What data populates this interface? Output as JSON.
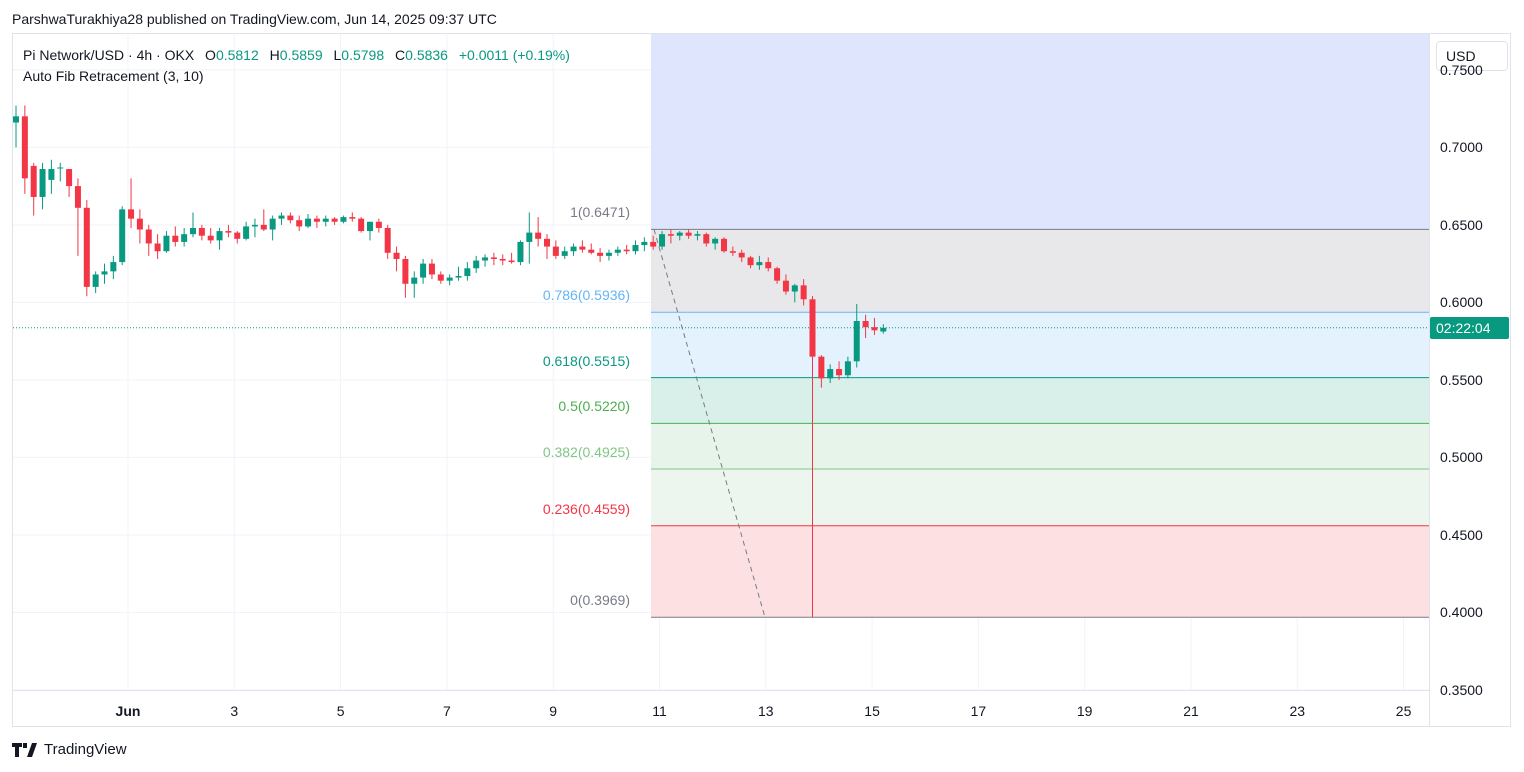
{
  "header": {
    "published_text": "ParshwaTurakhiya28 published on TradingView.com, Jun 14, 2025 09:37 UTC"
  },
  "legend": {
    "symbol": "Pi Network/USD · 4h · OKX",
    "o_label": "O",
    "o_value": "0.5812",
    "h_label": "H",
    "h_value": "0.5859",
    "l_label": "L",
    "l_value": "0.5798",
    "c_label": "C",
    "c_value": "0.5836",
    "change": "+0.0011 (+0.19%)",
    "indicator": "Auto Fib Retracement (3, 10)"
  },
  "price_axis": {
    "currency_button": "USD",
    "ticks": [
      "0.7500",
      "0.7000",
      "0.6500",
      "0.6000",
      "0.5500",
      "0.5000",
      "0.4500",
      "0.4000",
      "0.3500"
    ],
    "countdown": "02:22:04",
    "current_price": 0.5836
  },
  "time_axis": {
    "ticks": [
      {
        "label": "Jun",
        "bold": true
      },
      {
        "label": "3"
      },
      {
        "label": "5"
      },
      {
        "label": "7"
      },
      {
        "label": "9"
      },
      {
        "label": "11"
      },
      {
        "label": "13"
      },
      {
        "label": "15"
      },
      {
        "label": "17"
      },
      {
        "label": "19"
      },
      {
        "label": "21"
      },
      {
        "label": "23"
      },
      {
        "label": "25"
      }
    ]
  },
  "fib_levels": [
    {
      "label": "1(0.6471)",
      "level": 1,
      "price": 0.6471,
      "color": "#787b86"
    },
    {
      "label": "0.786(0.5936)",
      "level": 0.786,
      "price": 0.5936,
      "color": "#64b5f6"
    },
    {
      "label": "0.618(0.5515)",
      "level": 0.618,
      "price": 0.5515,
      "color": "#089981"
    },
    {
      "label": "0.5(0.5220)",
      "level": 0.5,
      "price": 0.522,
      "color": "#4caf50"
    },
    {
      "label": "0.382(0.4925)",
      "level": 0.382,
      "price": 0.4925,
      "color": "#81c784"
    },
    {
      "label": "0.236(0.4559)",
      "level": 0.236,
      "price": 0.4559,
      "color": "#f23645"
    },
    {
      "label": "0(0.3969)",
      "level": 0,
      "price": 0.3969,
      "color": "#787b86"
    }
  ],
  "colors": {
    "up": "#089981",
    "down": "#f23645",
    "fib_top_zone": "#dfe5fd",
    "fib_zone_1": "#e8e8ea",
    "fib_zone_2": "#e3f2fd",
    "fib_zone_3": "#d9f0ea",
    "fib_zone_4": "#e6f4ea",
    "fib_zone_5": "#edf6ee",
    "fib_zone_6": "#fde0e1"
  },
  "chart_data": {
    "type": "candlestick",
    "symbol": "Pi Network/USD",
    "interval": "4h",
    "exchange": "OKX",
    "ylim": [
      0.35,
      0.7731
    ],
    "ohlc": [
      [
        0.716,
        0.727,
        0.7,
        0.72
      ],
      [
        0.72,
        0.727,
        0.67,
        0.68
      ],
      [
        0.688,
        0.69,
        0.656,
        0.668
      ],
      [
        0.668,
        0.69,
        0.66,
        0.686
      ],
      [
        0.679,
        0.692,
        0.67,
        0.686
      ],
      [
        0.687,
        0.69,
        0.678,
        0.687
      ],
      [
        0.686,
        0.686,
        0.668,
        0.675
      ],
      [
        0.675,
        0.68,
        0.63,
        0.661
      ],
      [
        0.661,
        0.666,
        0.604,
        0.61
      ],
      [
        0.61,
        0.62,
        0.606,
        0.618
      ],
      [
        0.618,
        0.625,
        0.612,
        0.62
      ],
      [
        0.62,
        0.63,
        0.615,
        0.626
      ],
      [
        0.626,
        0.662,
        0.624,
        0.66
      ],
      [
        0.66,
        0.68,
        0.648,
        0.654
      ],
      [
        0.654,
        0.66,
        0.638,
        0.647
      ],
      [
        0.647,
        0.65,
        0.63,
        0.638
      ],
      [
        0.638,
        0.644,
        0.628,
        0.633
      ],
      [
        0.633,
        0.646,
        0.632,
        0.643
      ],
      [
        0.643,
        0.649,
        0.636,
        0.639
      ],
      [
        0.639,
        0.648,
        0.636,
        0.644
      ],
      [
        0.644,
        0.658,
        0.642,
        0.648
      ],
      [
        0.648,
        0.65,
        0.64,
        0.643
      ],
      [
        0.643,
        0.648,
        0.638,
        0.64
      ],
      [
        0.64,
        0.648,
        0.634,
        0.646
      ],
      [
        0.646,
        0.65,
        0.642,
        0.645
      ],
      [
        0.645,
        0.646,
        0.638,
        0.641
      ],
      [
        0.641,
        0.652,
        0.64,
        0.649
      ],
      [
        0.649,
        0.654,
        0.642,
        0.65
      ],
      [
        0.65,
        0.66,
        0.646,
        0.647
      ],
      [
        0.647,
        0.656,
        0.64,
        0.654
      ],
      [
        0.654,
        0.658,
        0.65,
        0.656
      ],
      [
        0.656,
        0.658,
        0.651,
        0.653
      ],
      [
        0.653,
        0.656,
        0.646,
        0.649
      ],
      [
        0.649,
        0.657,
        0.648,
        0.654
      ],
      [
        0.654,
        0.656,
        0.648,
        0.652
      ],
      [
        0.652,
        0.656,
        0.649,
        0.654
      ],
      [
        0.654,
        0.655,
        0.65,
        0.652
      ],
      [
        0.652,
        0.656,
        0.651,
        0.655
      ],
      [
        0.655,
        0.658,
        0.652,
        0.654
      ],
      [
        0.654,
        0.655,
        0.645,
        0.646
      ],
      [
        0.646,
        0.652,
        0.64,
        0.652
      ],
      [
        0.652,
        0.654,
        0.645,
        0.648
      ],
      [
        0.648,
        0.65,
        0.628,
        0.632
      ],
      [
        0.632,
        0.636,
        0.62,
        0.628
      ],
      [
        0.628,
        0.63,
        0.603,
        0.612
      ],
      [
        0.612,
        0.62,
        0.603,
        0.616
      ],
      [
        0.616,
        0.628,
        0.612,
        0.625
      ],
      [
        0.625,
        0.628,
        0.615,
        0.618
      ],
      [
        0.618,
        0.62,
        0.612,
        0.614
      ],
      [
        0.614,
        0.618,
        0.611,
        0.616
      ],
      [
        0.616,
        0.623,
        0.614,
        0.617
      ],
      [
        0.617,
        0.626,
        0.614,
        0.622
      ],
      [
        0.622,
        0.63,
        0.619,
        0.627
      ],
      [
        0.627,
        0.631,
        0.623,
        0.629
      ],
      [
        0.629,
        0.632,
        0.624,
        0.628
      ],
      [
        0.628,
        0.631,
        0.624,
        0.627
      ],
      [
        0.627,
        0.632,
        0.625,
        0.626
      ],
      [
        0.626,
        0.64,
        0.624,
        0.639
      ],
      [
        0.639,
        0.658,
        0.625,
        0.645
      ],
      [
        0.645,
        0.655,
        0.636,
        0.641
      ],
      [
        0.641,
        0.644,
        0.628,
        0.636
      ],
      [
        0.636,
        0.64,
        0.628,
        0.63
      ],
      [
        0.63,
        0.636,
        0.628,
        0.633
      ],
      [
        0.633,
        0.638,
        0.63,
        0.636
      ],
      [
        0.636,
        0.64,
        0.632,
        0.634
      ],
      [
        0.634,
        0.638,
        0.631,
        0.632
      ],
      [
        0.632,
        0.635,
        0.626,
        0.63
      ],
      [
        0.63,
        0.634,
        0.627,
        0.632
      ],
      [
        0.632,
        0.636,
        0.63,
        0.634
      ],
      [
        0.634,
        0.637,
        0.631,
        0.633
      ],
      [
        0.633,
        0.64,
        0.631,
        0.637
      ],
      [
        0.637,
        0.642,
        0.633,
        0.639
      ],
      [
        0.639,
        0.643,
        0.634,
        0.636
      ],
      [
        0.636,
        0.646,
        0.634,
        0.644
      ],
      [
        0.644,
        0.647,
        0.638,
        0.643
      ],
      [
        0.643,
        0.646,
        0.64,
        0.645
      ],
      [
        0.645,
        0.647,
        0.641,
        0.643
      ],
      [
        0.643,
        0.646,
        0.64,
        0.644
      ],
      [
        0.644,
        0.645,
        0.636,
        0.638
      ],
      [
        0.638,
        0.642,
        0.634,
        0.641
      ],
      [
        0.641,
        0.642,
        0.632,
        0.633
      ],
      [
        0.633,
        0.636,
        0.63,
        0.632
      ],
      [
        0.632,
        0.634,
        0.626,
        0.629
      ],
      [
        0.629,
        0.63,
        0.622,
        0.624
      ],
      [
        0.624,
        0.63,
        0.621,
        0.626
      ],
      [
        0.626,
        0.629,
        0.62,
        0.622
      ],
      [
        0.622,
        0.623,
        0.612,
        0.614
      ],
      [
        0.614,
        0.618,
        0.605,
        0.607
      ],
      [
        0.607,
        0.612,
        0.6,
        0.611
      ],
      [
        0.611,
        0.615,
        0.598,
        0.602
      ],
      [
        0.602,
        0.604,
        0.3969,
        0.565
      ],
      [
        0.565,
        0.566,
        0.545,
        0.551
      ],
      [
        0.551,
        0.56,
        0.548,
        0.557
      ],
      [
        0.557,
        0.562,
        0.55,
        0.553
      ],
      [
        0.553,
        0.565,
        0.551,
        0.562
      ],
      [
        0.562,
        0.599,
        0.558,
        0.588
      ],
      [
        0.588,
        0.592,
        0.577,
        0.584
      ],
      [
        0.584,
        0.59,
        0.579,
        0.582
      ],
      [
        0.5812,
        0.5859,
        0.5798,
        0.5836
      ]
    ]
  }
}
